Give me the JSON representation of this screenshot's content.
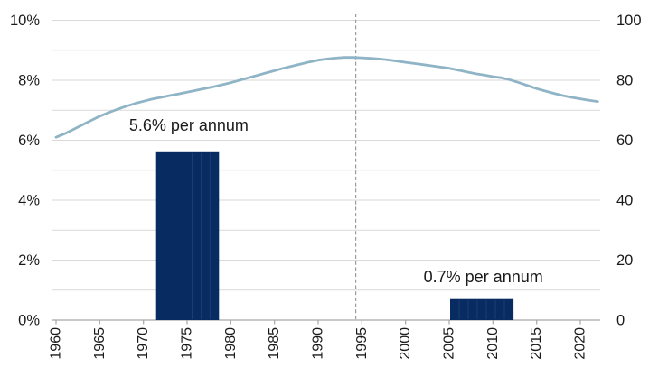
{
  "chart_data": {
    "type": "combo",
    "title": "",
    "grid": "horizontal, every 1% (10 units), light gray",
    "legend": "none",
    "left_axis": {
      "tick_labels": [
        "10%",
        "8%",
        "6%",
        "4%",
        "2%",
        "0%"
      ],
      "tick_values_pct": [
        10,
        8,
        6,
        4,
        2,
        0
      ],
      "range_pct": [
        0,
        10
      ]
    },
    "right_axis": {
      "tick_labels": [
        "100",
        "80",
        "60",
        "40",
        "20",
        "0"
      ],
      "tick_values": [
        100,
        80,
        60,
        40,
        20,
        0
      ],
      "range": [
        0,
        100
      ]
    },
    "x_axis": {
      "tick_labels": [
        "1960",
        "1965",
        "1970",
        "1975",
        "1980",
        "1985",
        "1990",
        "1995",
        "2000",
        "2005",
        "2010",
        "2015",
        "2020"
      ],
      "tick_years": [
        1960,
        1965,
        1970,
        1975,
        1980,
        1985,
        1990,
        1995,
        2000,
        2005,
        2010,
        2015,
        2020
      ],
      "label_rotation_deg": -90
    },
    "divider_year": 1994.3,
    "line": {
      "axis": "right",
      "color": "#8FB4C6",
      "start_year": 1960,
      "end_year": 2022,
      "values": [
        61.0,
        62.2,
        63.6,
        65.1,
        66.6,
        68.0,
        69.2,
        70.3,
        71.3,
        72.2,
        73.0,
        73.7,
        74.3,
        74.9,
        75.4,
        76.0,
        76.6,
        77.2,
        77.8,
        78.5,
        79.2,
        80.0,
        80.8,
        81.6,
        82.4,
        83.2,
        84.0,
        84.7,
        85.4,
        86.1,
        86.7,
        87.1,
        87.4,
        87.6,
        87.6,
        87.5,
        87.3,
        87.1,
        86.8,
        86.4,
        86.0,
        85.6,
        85.2,
        84.8,
        84.4,
        84.0,
        83.4,
        82.8,
        82.2,
        81.7,
        81.2,
        80.8,
        80.1,
        79.2,
        78.2,
        77.2,
        76.4,
        75.6,
        74.9,
        74.3,
        73.8,
        73.3,
        72.9
      ]
    },
    "bars": {
      "axis": "left",
      "color": "#082B62",
      "divider_color": "#1E3D72",
      "periods": [
        {
          "years": "1972–1978",
          "from": 1971.45,
          "to": 1978.65,
          "segments": 7,
          "value_pct_per_annum": 5.6,
          "annotation": "5.6% per annum",
          "annotation_anchor": {
            "year": 1975.2,
            "pct": 6.32
          }
        },
        {
          "years": "2005–2012",
          "from": 2005.1,
          "to": 2012.35,
          "segments": 7,
          "value_pct_per_annum": 0.7,
          "annotation": "0.7% per annum",
          "annotation_anchor": {
            "year": 2008.9,
            "pct": 1.26
          }
        }
      ]
    },
    "colors": {
      "grid": "#D9D9D9",
      "axis": "#A6A6A6",
      "dashed_divider": "#9C9C9C",
      "text": "#1A1A1A",
      "background": "#FFFFFF"
    }
  }
}
